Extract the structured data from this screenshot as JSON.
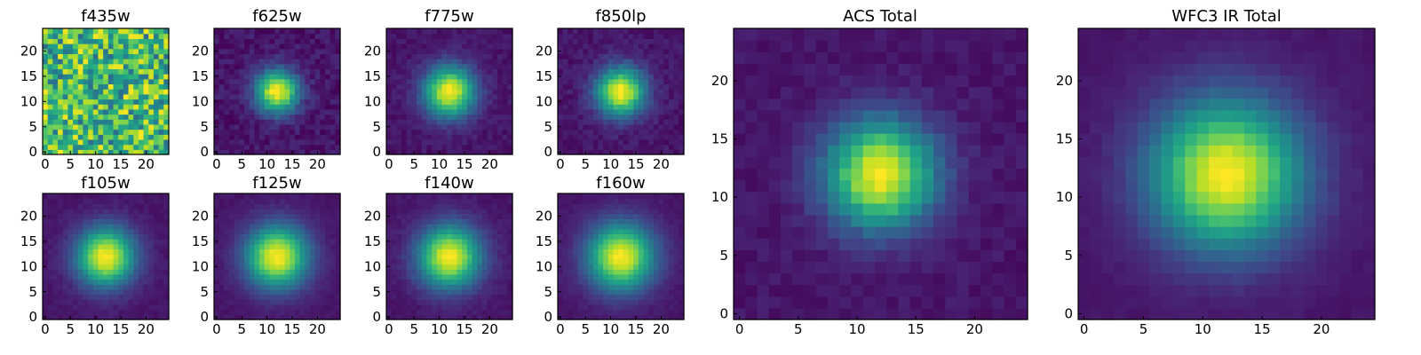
{
  "chart_data": [
    {
      "type": "heatmap",
      "title": "f435w",
      "xticks": [
        "0",
        "5",
        "10",
        "15",
        "20"
      ],
      "yticks": [
        "0",
        "5",
        "10",
        "15",
        "20"
      ],
      "xlim": [
        0,
        25
      ],
      "ylim": [
        0,
        25
      ],
      "grid": "25x25",
      "peak": [
        12,
        12
      ],
      "sigma": 0,
      "noise": 0.65,
      "colormap": "viridis"
    },
    {
      "type": "heatmap",
      "title": "f625w",
      "xticks": [
        "0",
        "5",
        "10",
        "15",
        "20"
      ],
      "yticks": [
        "0",
        "5",
        "10",
        "15",
        "20"
      ],
      "xlim": [
        0,
        25
      ],
      "ylim": [
        0,
        25
      ],
      "grid": "25x25",
      "peak": [
        12,
        12
      ],
      "sigma": 2.2,
      "noise": 0.12,
      "colormap": "viridis"
    },
    {
      "type": "heatmap",
      "title": "f775w",
      "xticks": [
        "0",
        "5",
        "10",
        "15",
        "20"
      ],
      "yticks": [
        "0",
        "5",
        "10",
        "15",
        "20"
      ],
      "xlim": [
        0,
        25
      ],
      "ylim": [
        0,
        25
      ],
      "grid": "25x25",
      "peak": [
        12,
        12
      ],
      "sigma": 2.6,
      "noise": 0.08,
      "colormap": "viridis"
    },
    {
      "type": "heatmap",
      "title": "f850lp",
      "xticks": [
        "0",
        "5",
        "10",
        "15",
        "20"
      ],
      "yticks": [
        "0",
        "5",
        "10",
        "15",
        "20"
      ],
      "xlim": [
        0,
        25
      ],
      "ylim": [
        0,
        25
      ],
      "grid": "25x25",
      "peak": [
        12,
        12
      ],
      "sigma": 2.5,
      "noise": 0.09,
      "colormap": "viridis"
    },
    {
      "type": "heatmap",
      "title": "f105w",
      "xticks": [
        "0",
        "5",
        "10",
        "15",
        "20"
      ],
      "yticks": [
        "0",
        "5",
        "10",
        "15",
        "20"
      ],
      "xlim": [
        0,
        25
      ],
      "ylim": [
        0,
        25
      ],
      "grid": "25x25",
      "peak": [
        12,
        12
      ],
      "sigma": 3.0,
      "noise": 0.05,
      "colormap": "viridis"
    },
    {
      "type": "heatmap",
      "title": "f125w",
      "xticks": [
        "0",
        "5",
        "10",
        "15",
        "20"
      ],
      "yticks": [
        "0",
        "5",
        "10",
        "15",
        "20"
      ],
      "xlim": [
        0,
        25
      ],
      "ylim": [
        0,
        25
      ],
      "grid": "25x25",
      "peak": [
        12,
        12
      ],
      "sigma": 3.2,
      "noise": 0.04,
      "colormap": "viridis"
    },
    {
      "type": "heatmap",
      "title": "f140w",
      "xticks": [
        "0",
        "5",
        "10",
        "15",
        "20"
      ],
      "yticks": [
        "0",
        "5",
        "10",
        "15",
        "20"
      ],
      "xlim": [
        0,
        25
      ],
      "ylim": [
        0,
        25
      ],
      "grid": "25x25",
      "peak": [
        12,
        12
      ],
      "sigma": 3.2,
      "noise": 0.05,
      "colormap": "viridis"
    },
    {
      "type": "heatmap",
      "title": "f160w",
      "xticks": [
        "0",
        "5",
        "10",
        "15",
        "20"
      ],
      "yticks": [
        "0",
        "5",
        "10",
        "15",
        "20"
      ],
      "xlim": [
        0,
        25
      ],
      "ylim": [
        0,
        25
      ],
      "grid": "25x25",
      "peak": [
        12,
        12
      ],
      "sigma": 3.4,
      "noise": 0.04,
      "colormap": "viridis"
    },
    {
      "type": "heatmap",
      "title": "ACS Total",
      "xticks": [
        "0",
        "5",
        "10",
        "15",
        "20"
      ],
      "yticks": [
        "0",
        "5",
        "10",
        "15",
        "20"
      ],
      "xlim": [
        0,
        25
      ],
      "ylim": [
        0,
        25
      ],
      "grid": "25x25",
      "peak": [
        12,
        12
      ],
      "sigma": 2.4,
      "noise": 0.07,
      "colormap": "viridis"
    },
    {
      "type": "heatmap",
      "title": "WFC3 IR Total",
      "xticks": [
        "0",
        "5",
        "10",
        "15",
        "20"
      ],
      "yticks": [
        "0",
        "5",
        "10",
        "15",
        "20"
      ],
      "xlim": [
        0,
        25
      ],
      "ylim": [
        0,
        25
      ],
      "grid": "25x25",
      "peak": [
        12,
        12
      ],
      "sigma": 3.3,
      "noise": 0.03,
      "colormap": "viridis"
    }
  ]
}
